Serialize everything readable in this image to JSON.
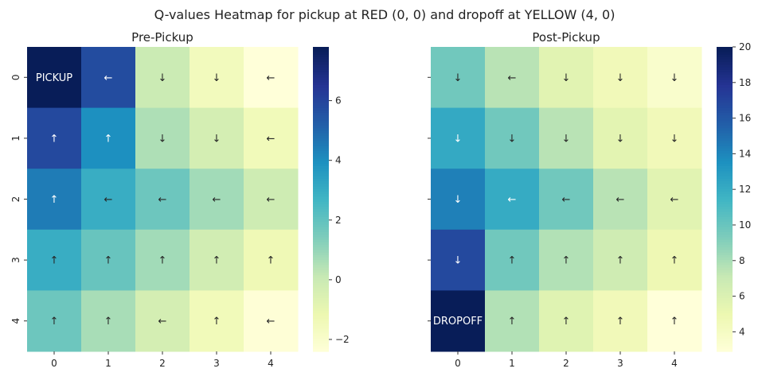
{
  "figure": {
    "suptitle": "Q-values Heatmap for pickup at RED (0, 0) and dropoff at YELLOW (4, 0)"
  },
  "chart_data": [
    {
      "type": "heatmap",
      "title": "Pre-Pickup",
      "xlabel": "",
      "ylabel": "",
      "x_categories": [
        "0",
        "1",
        "2",
        "3",
        "4"
      ],
      "y_categories": [
        "0",
        "1",
        "2",
        "3",
        "4"
      ],
      "colorscale": "YlGnBu",
      "vmin": -2.4,
      "vmax": 7.8,
      "colorbar_ticks": [
        -2,
        0,
        2,
        4,
        6
      ],
      "grid": false,
      "values": [
        [
          7.8,
          5.8,
          0.0,
          -1.5,
          -2.4
        ],
        [
          5.9,
          4.0,
          0.6,
          -0.3,
          -1.4
        ],
        [
          4.5,
          3.0,
          1.8,
          0.8,
          -0.1
        ],
        [
          3.0,
          1.9,
          0.8,
          -0.2,
          -1.3
        ],
        [
          1.8,
          0.7,
          -0.3,
          -1.4,
          -2.3
        ]
      ],
      "annotations": [
        [
          "PICKUP",
          "←",
          "↓",
          "↓",
          "←"
        ],
        [
          "↑",
          "↑",
          "↓",
          "↓",
          "←"
        ],
        [
          "↑",
          "←",
          "←",
          "←",
          "←"
        ],
        [
          "↑",
          "↑",
          "↑",
          "↑",
          "↑"
        ],
        [
          "↑",
          "↑",
          "←",
          "↑",
          "←"
        ]
      ]
    },
    {
      "type": "heatmap",
      "title": "Post-Pickup",
      "xlabel": "",
      "ylabel": "",
      "x_categories": [
        "0",
        "1",
        "2",
        "3",
        "4"
      ],
      "y_categories": [
        "0",
        "1",
        "2",
        "3",
        "4"
      ],
      "colorscale": "YlGnBu",
      "vmin": 2.9,
      "vmax": 20,
      "colorbar_ticks": [
        4,
        6,
        8,
        10,
        12,
        14,
        16,
        18,
        20
      ],
      "grid": false,
      "values": [
        [
          9.8,
          7.6,
          5.7,
          4.6,
          3.6
        ],
        [
          12.2,
          9.8,
          7.6,
          5.6,
          4.6
        ],
        [
          14.3,
          12.1,
          9.8,
          7.6,
          5.7
        ],
        [
          16.8,
          9.8,
          7.8,
          6.7,
          4.9
        ],
        [
          20.0,
          7.8,
          5.8,
          4.6,
          2.9
        ]
      ],
      "annotations": [
        [
          "↓",
          "←",
          "↓",
          "↓",
          "↓"
        ],
        [
          "↓",
          "↓",
          "↓",
          "↓",
          "↓"
        ],
        [
          "↓",
          "←",
          "←",
          "←",
          "←"
        ],
        [
          "↓",
          "↑",
          "↑",
          "↑",
          "↑"
        ],
        [
          "DROPOFF",
          "↑",
          "↑",
          "↑",
          "↑"
        ]
      ]
    }
  ]
}
